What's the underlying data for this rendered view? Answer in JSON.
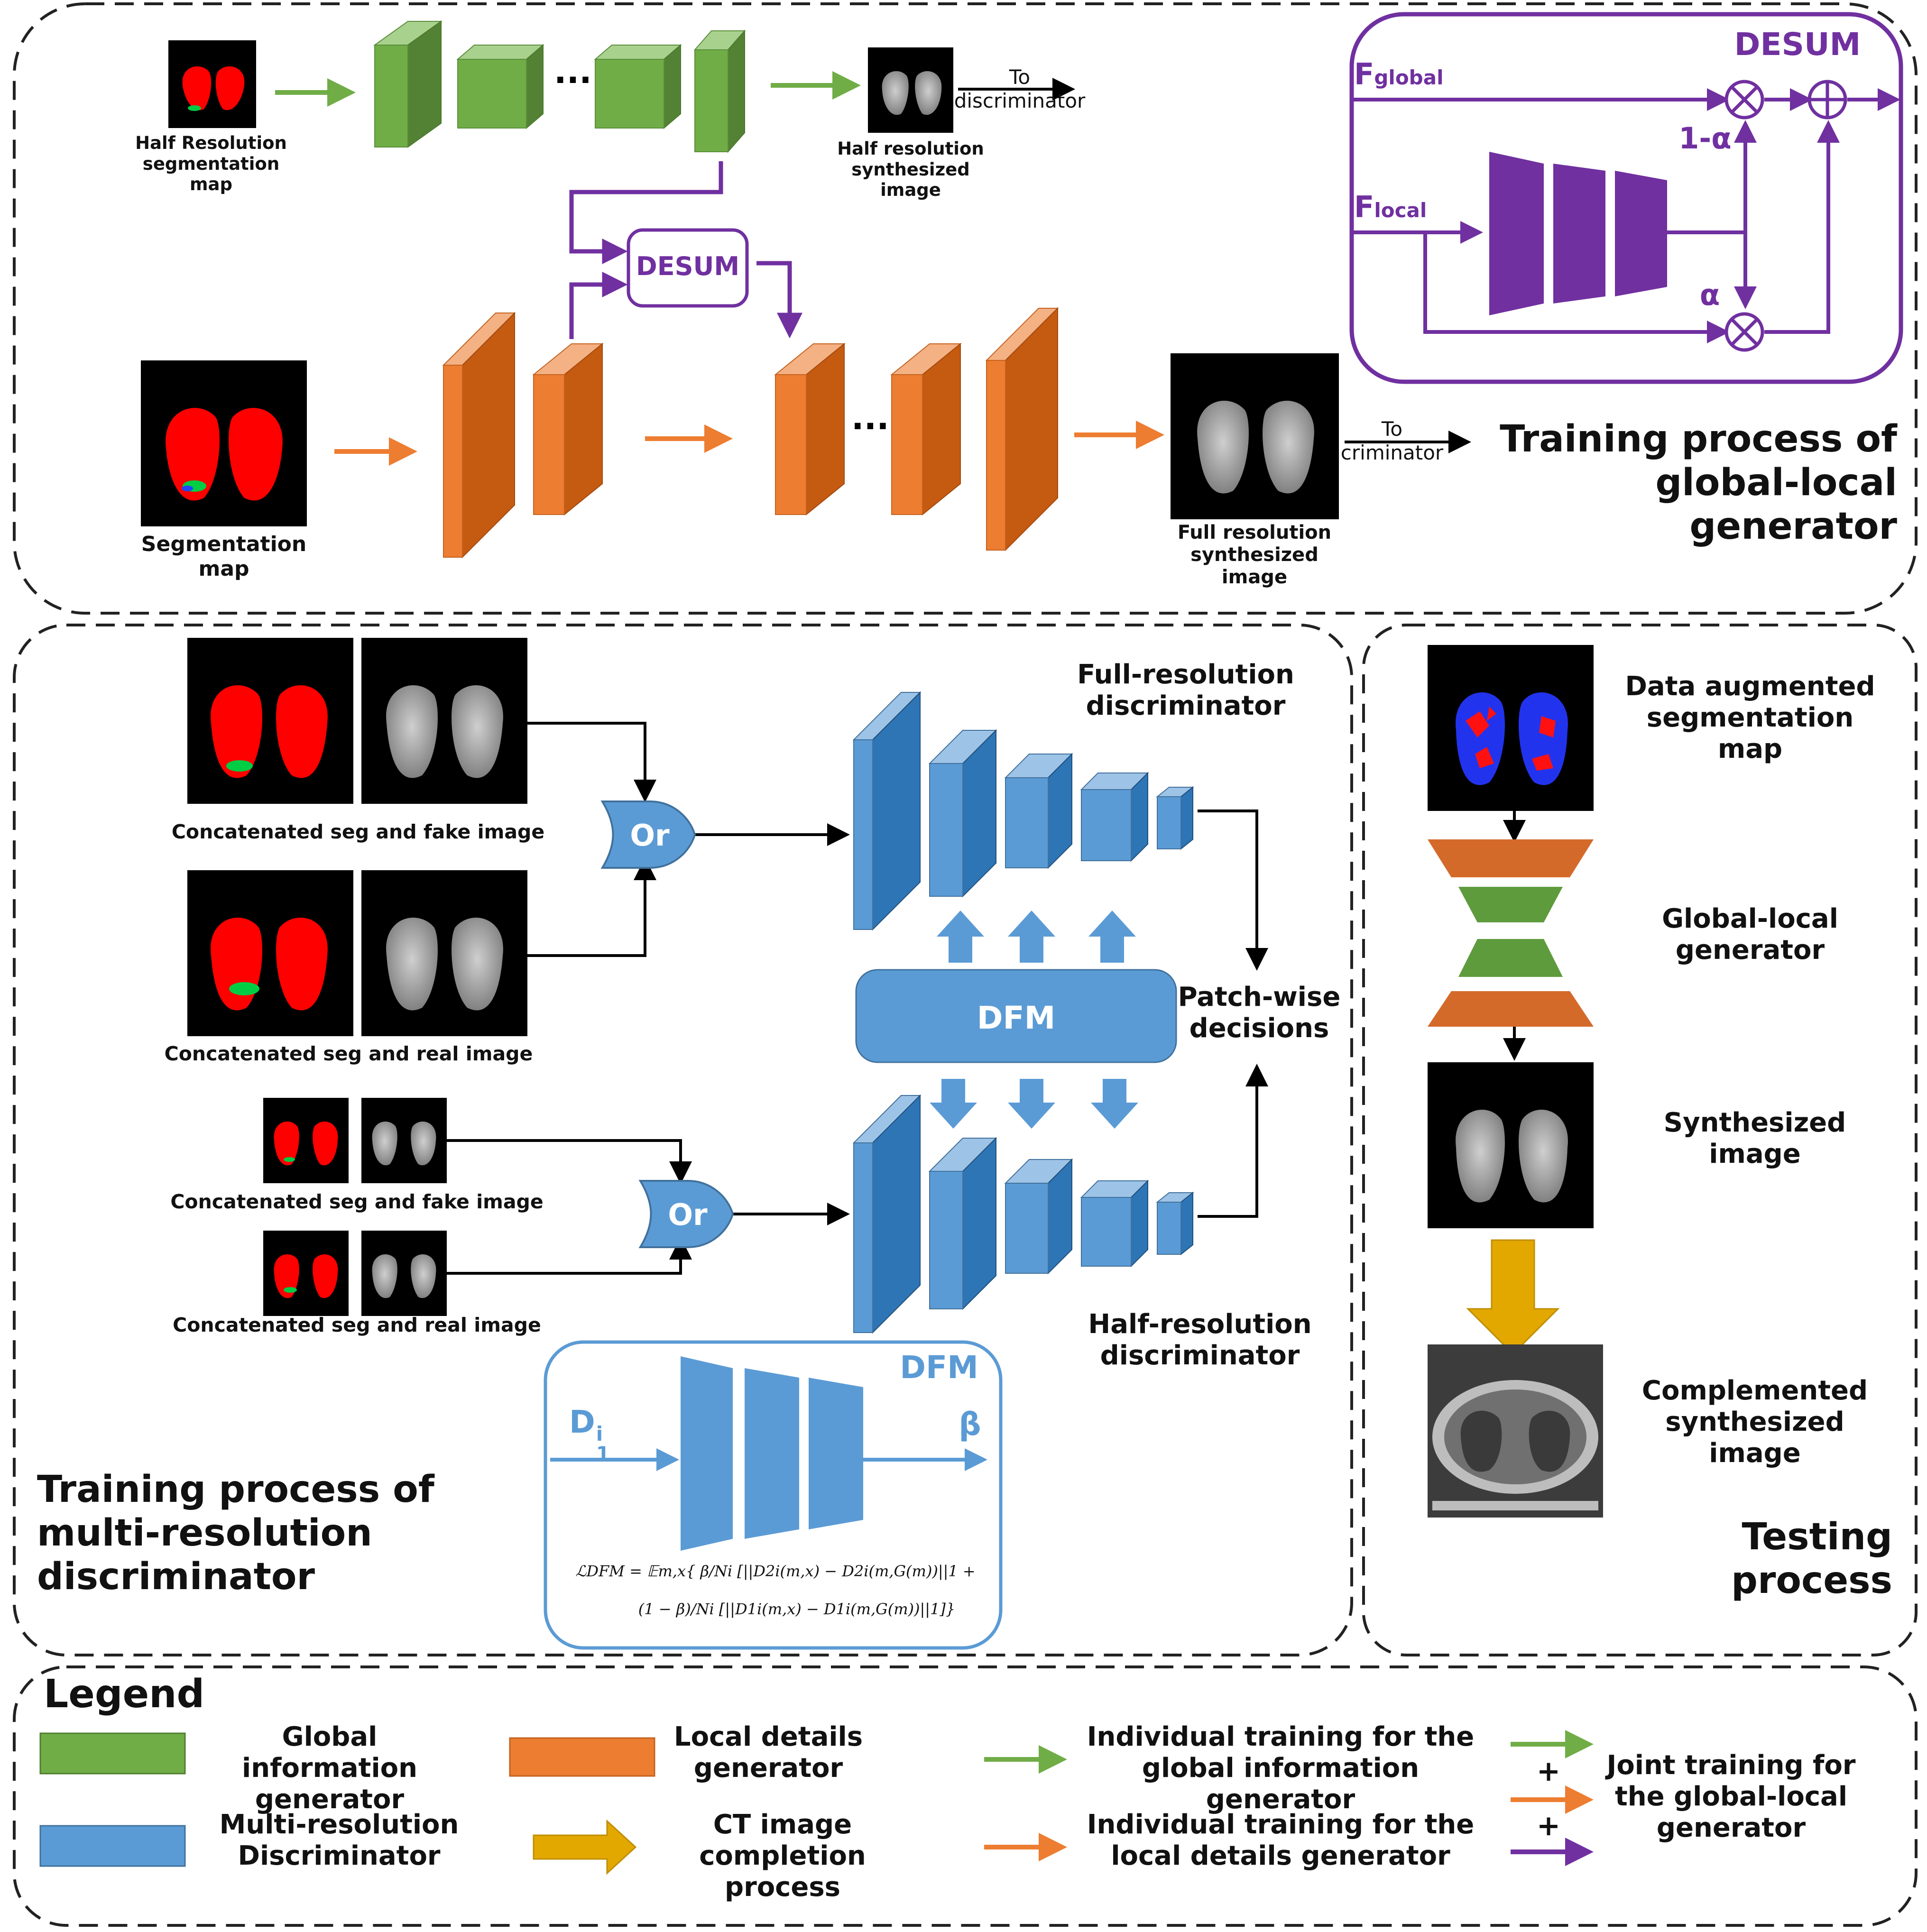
{
  "colors": {
    "global_green": "#70AD47",
    "local_orange": "#ED7D31",
    "disc_blue": "#5B9BD5",
    "desum_purple": "#7030A0",
    "ct_yellow": "#E2A800",
    "seg_red": "#FF0000"
  },
  "top_panel": {
    "half_seg_label": "Half Resolution\nsegmentation\nmap",
    "half_img_label": "Half resolution\nsynthesized\nimage",
    "to_disc_1": "To\ndiscriminator",
    "desum_box": "DESUM",
    "seg_label": "Segmentation\nmap",
    "full_img_label": "Full resolution\nsynthesized\nimage",
    "to_disc_2": "To\ncriminator",
    "ellipsis": "...",
    "title": "Training process of\nglobal-local\ngenerator"
  },
  "desum_inset": {
    "title": "DESUM",
    "f_global": "F",
    "f_global_sub": "global",
    "f_local": "F",
    "f_local_sub": "local",
    "one_minus_alpha": "1-α",
    "alpha": "α",
    "times_icon": "⊗",
    "plus_icon": "⊕"
  },
  "disc_panel": {
    "fake_full_label": "Concatenated seg and fake image",
    "real_full_label": "Concatenated seg and real image",
    "fake_half_label": "Concatenated seg and fake image",
    "real_half_label": "Concatenated seg and real image",
    "or_label": "Or",
    "dfm_label": "DFM",
    "full_disc_label": "Full-resolution\ndiscriminator",
    "half_disc_label": "Half-resolution\ndiscriminator",
    "patch_label": "Patch-wise\ndecisions",
    "title": "Training process of\nmulti-resolution\ndiscriminator",
    "dfm_inset_title": "DFM",
    "dfm_input": "D",
    "dfm_input_sup": "i",
    "dfm_input_sub": "1",
    "dfm_output": "β",
    "loss_line1": "ℒDFM = 𝔼m,x{ β/Ni [||D2i(m,x) − D2i(m,G(m))||1 +",
    "loss_line2": "(1 − β)/Ni [||D1i(m,x) − D1i(m,G(m))||1]}"
  },
  "test_panel": {
    "aug_label": "Data augmented\nsegmentation\nmap",
    "gen_label": "Global-local\ngenerator",
    "synth_label": "Synthesized\nimage",
    "comp_label": "Complemented\nsynthesized\nimage",
    "title": "Testing\nprocess"
  },
  "legend": {
    "title": "Legend",
    "global_gen": "Global information\ngenerator",
    "local_gen": "Local details\ngenerator",
    "multi_disc": "Multi-resolution\nDiscriminator",
    "ct_completion": "CT image\ncompletion process",
    "green_arrow": "Individual training for the\nglobal information generator",
    "orange_arrow": "Individual training for the\nlocal details generator",
    "joint": "Joint training for\nthe global-local\ngenerator",
    "plus": "+"
  }
}
